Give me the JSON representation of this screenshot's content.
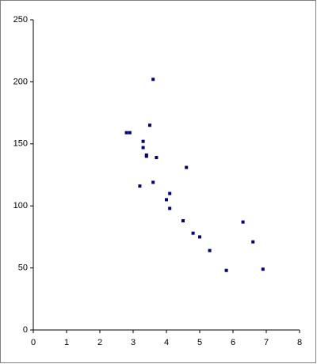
{
  "chart_data": {
    "type": "scatter",
    "color": "#000080",
    "x": [
      2.8,
      2.9,
      3.5,
      3.6,
      3.3,
      3.3,
      3.4,
      3.4,
      3.7,
      4.6,
      3.2,
      3.6,
      4.1,
      4.0,
      4.1,
      4.5,
      4.8,
      5.0,
      5.3,
      5.8,
      6.3,
      6.6,
      6.9
    ],
    "values": [
      159,
      159,
      165,
      202,
      152,
      147,
      141,
      140,
      139,
      131,
      116,
      119,
      110,
      105,
      98,
      88,
      78,
      75,
      64,
      48,
      87,
      71,
      49
    ],
    "xlim": [
      0,
      8
    ],
    "xticks": [
      0,
      1,
      2,
      3,
      4,
      5,
      6,
      7,
      8
    ],
    "ylim": [
      0,
      250
    ],
    "yticks": [
      0,
      50,
      100,
      150,
      200,
      250
    ]
  }
}
